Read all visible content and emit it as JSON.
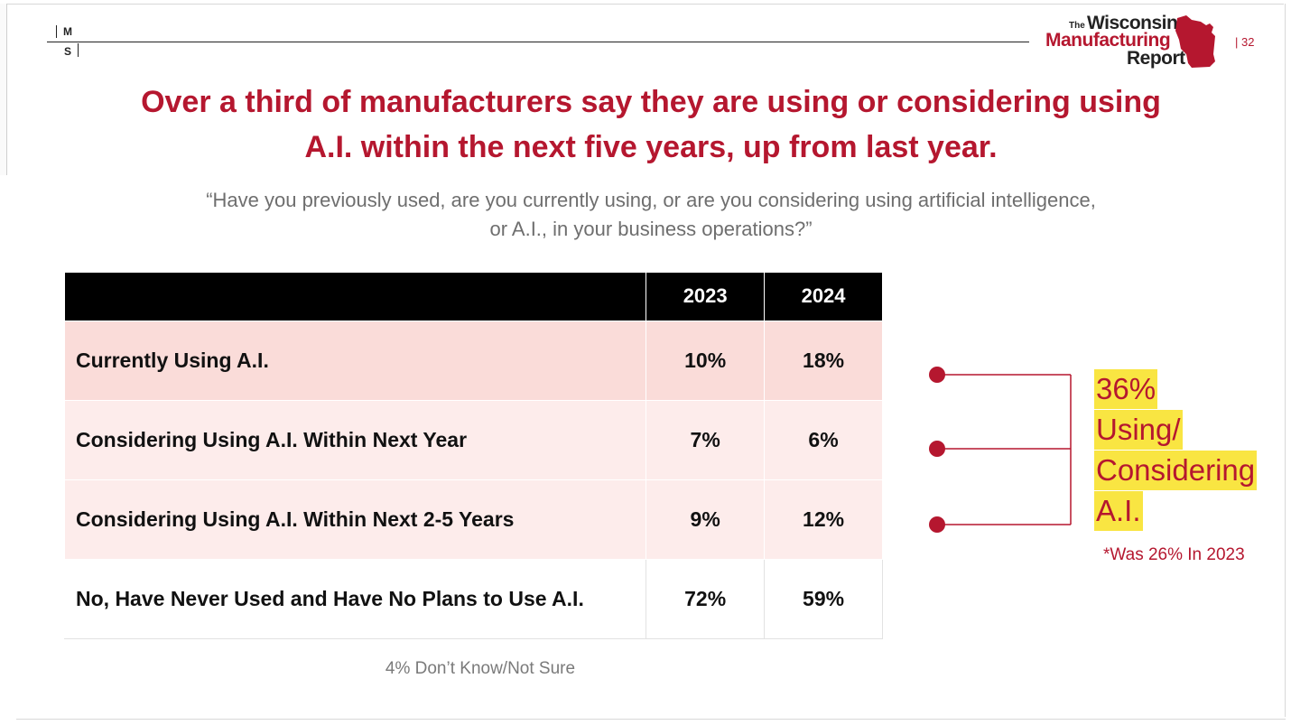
{
  "header": {
    "ms_logo": {
      "m": "M",
      "s": "S"
    },
    "brand": {
      "the": "The",
      "line1": "Wisconsin",
      "line2": "Manufacturing",
      "line3": "Report"
    },
    "page_number": "| 32"
  },
  "title": {
    "line1": "Over a third of manufacturers say they are using or considering using",
    "line2": "A.I. within the next five years, up from last year."
  },
  "subtitle": {
    "line1": "“Have you previously used, are you currently using, or are you considering using artificial intelligence,",
    "line2": "or A.I., in your business operations?”"
  },
  "table": {
    "columns": [
      "",
      "2023",
      "2024"
    ],
    "rows": [
      {
        "label": "Currently Using A.I.",
        "y2023": "10%",
        "y2024": "18%"
      },
      {
        "label": "Considering Using A.I. Within Next Year",
        "y2023": "7%",
        "y2024": "6%"
      },
      {
        "label": "Considering Using A.I. Within Next 2-5 Years",
        "y2023": "9%",
        "y2024": "12%"
      },
      {
        "label": "No, Have Never Used and Have No Plans to Use A.I.",
        "y2023": "72%",
        "y2024": "59%"
      }
    ]
  },
  "callout": {
    "lines": [
      "36%",
      "Using/",
      "Considering",
      "A.I."
    ],
    "note": "*Was 26% In 2023"
  },
  "footnote": "4% Don’t Know/Not Sure",
  "colors": {
    "accent": "#b5172f",
    "highlight": "#f9e542",
    "row_dark": "#fadcd9",
    "row_light": "#fdeceb"
  }
}
